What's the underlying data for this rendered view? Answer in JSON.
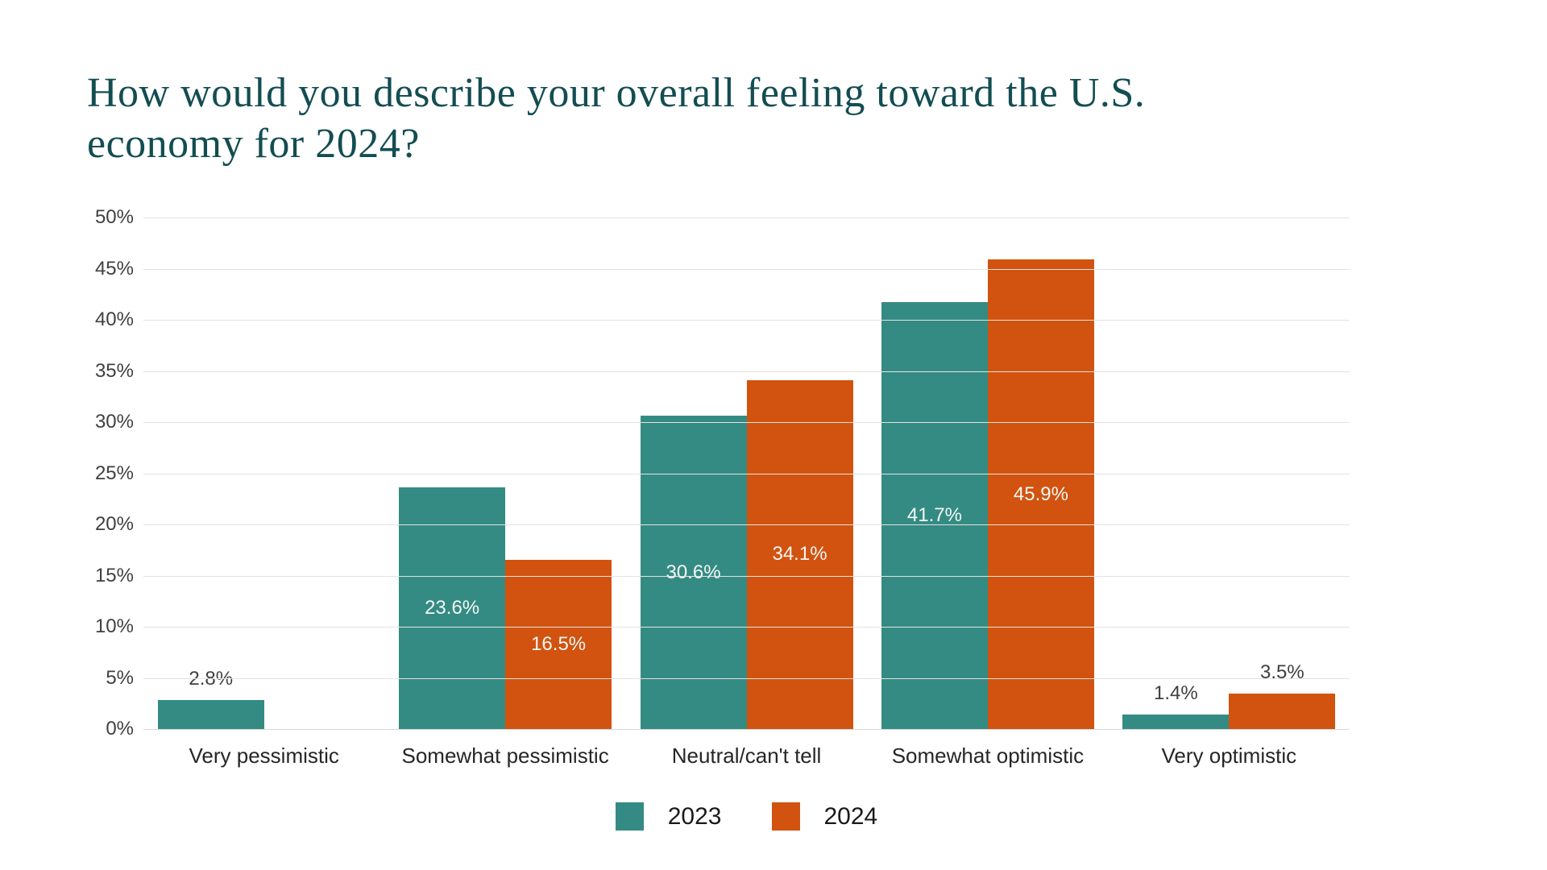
{
  "title": {
    "lines": [
      "How would you describe your overall feeling toward the U.S.",
      "economy for 2024?"
    ],
    "color": "#134d52"
  },
  "chart_data": {
    "type": "bar",
    "title": "How would you describe your overall feeling toward the U.S. economy for 2024?",
    "categories": [
      "Very pessimistic",
      "Somewhat pessimistic",
      "Neutral/can't tell",
      "Somewhat optimistic",
      "Very optimistic"
    ],
    "series": [
      {
        "name": "2023",
        "color": "#348b83",
        "values": [
          2.8,
          23.6,
          30.6,
          41.7,
          1.4
        ]
      },
      {
        "name": "2024",
        "color": "#d1530f",
        "values": [
          null,
          16.5,
          34.1,
          45.9,
          3.5
        ]
      }
    ],
    "value_suffix": "%",
    "ylim": [
      0,
      50
    ],
    "ytick_step": 5,
    "ytick_labels": [
      "0%",
      "5%",
      "10%",
      "15%",
      "20%",
      "25%",
      "30%",
      "35%",
      "40%",
      "45%",
      "50%"
    ],
    "grid": true,
    "legend_position": "bottom",
    "label_inside_min": 10,
    "colors": {
      "grid": "#e3e3e3",
      "baseline": "#d8d8d8",
      "axis_text": "#404040",
      "category_text": "#262626",
      "label_inside": "#f4f7f5",
      "label_outside": "#3f3f3f",
      "legend_text": "#1a1a1a",
      "background": "#ffffff"
    }
  }
}
